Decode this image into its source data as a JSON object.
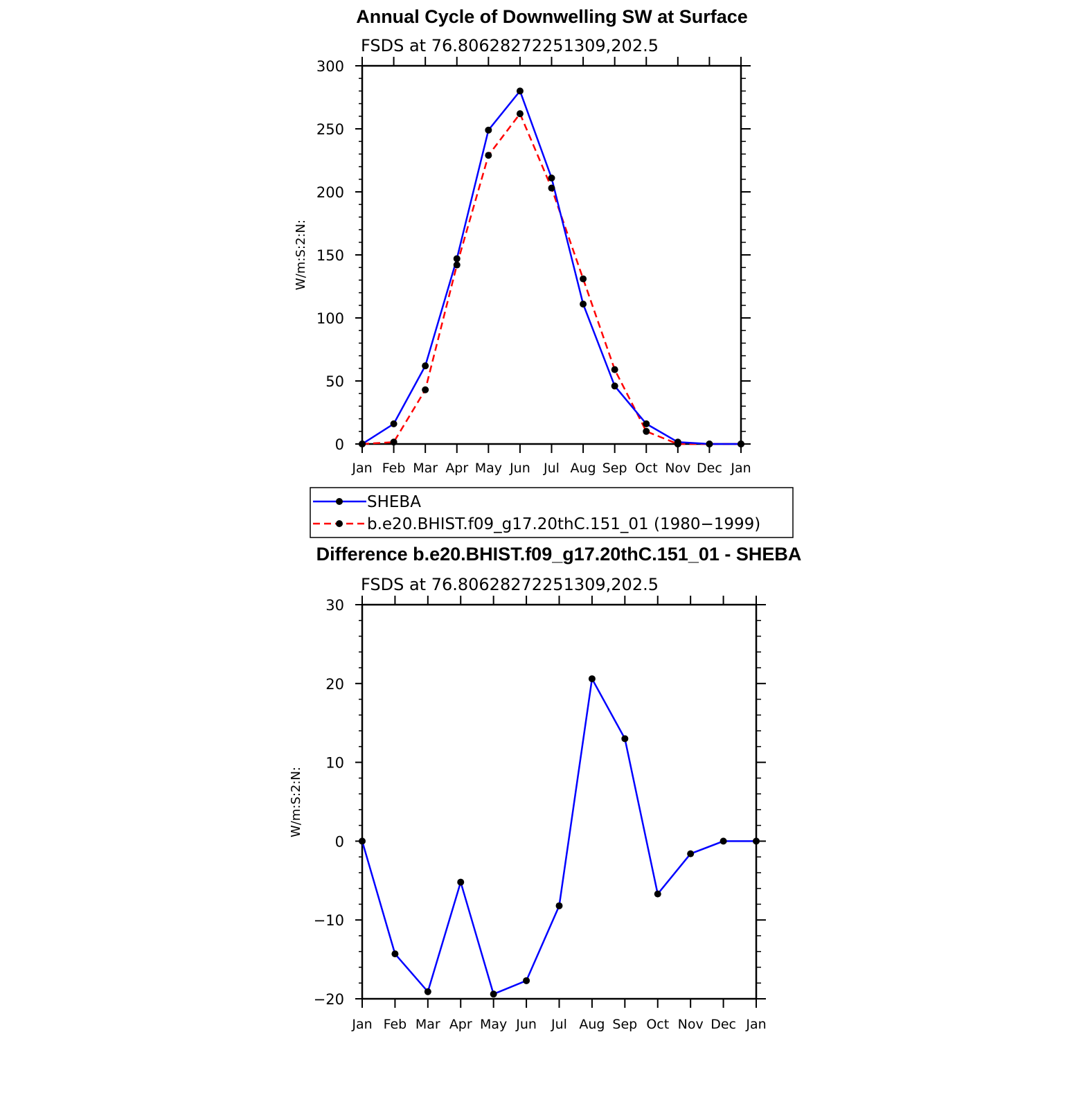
{
  "chart_data": [
    {
      "type": "line",
      "title": "Annual Cycle of Downwelling SW at Surface",
      "subtitle": "FSDS at 76.80628272251309,202.5",
      "xlabel": "",
      "ylabel": "W/m:S:2:N:",
      "ylim": [
        0,
        300
      ],
      "yticks": [
        "0",
        "50",
        "100",
        "150",
        "200",
        "250",
        "300"
      ],
      "categories": [
        "Jan",
        "Feb",
        "Mar",
        "Apr",
        "May",
        "Jun",
        "Jul",
        "Aug",
        "Sep",
        "Oct",
        "Nov",
        "Dec",
        "Jan"
      ],
      "grid": false,
      "legend_position": "below",
      "series": [
        {
          "name": "SHEBA",
          "color": "#0000ff",
          "dash": "solid",
          "values": [
            0,
            16,
            62,
            147,
            249,
            280,
            211,
            111,
            46,
            16,
            1.5,
            0,
            0
          ]
        },
        {
          "name": "b.e20.BHIST.f09_g17.20thC.151_01 (1980−1999)",
          "color": "#ff0000",
          "dash": "dashed",
          "values": [
            0,
            1.5,
            43,
            142,
            229,
            262,
            203,
            131,
            59,
            10,
            0,
            0,
            0
          ]
        }
      ]
    },
    {
      "type": "line",
      "title": "Difference b.e20.BHIST.f09_g17.20thC.151_01 - SHEBA",
      "subtitle": "FSDS at 76.80628272251309,202.5",
      "xlabel": "",
      "ylabel": "W/m:S:2:N:",
      "ylim": [
        -20,
        30
      ],
      "yticks": [
        "−20",
        "−10",
        "0",
        "10",
        "20",
        "30"
      ],
      "categories": [
        "Jan",
        "Feb",
        "Mar",
        "Apr",
        "May",
        "Jun",
        "Jul",
        "Aug",
        "Sep",
        "Oct",
        "Nov",
        "Dec",
        "Jan"
      ],
      "grid": false,
      "series": [
        {
          "color": "#0000ff",
          "dash": "solid",
          "values": [
            0,
            -14.3,
            -19.1,
            -5.2,
            -19.4,
            -17.7,
            -8.2,
            20.6,
            13.0,
            -6.7,
            -1.6,
            0,
            0
          ]
        }
      ]
    }
  ]
}
